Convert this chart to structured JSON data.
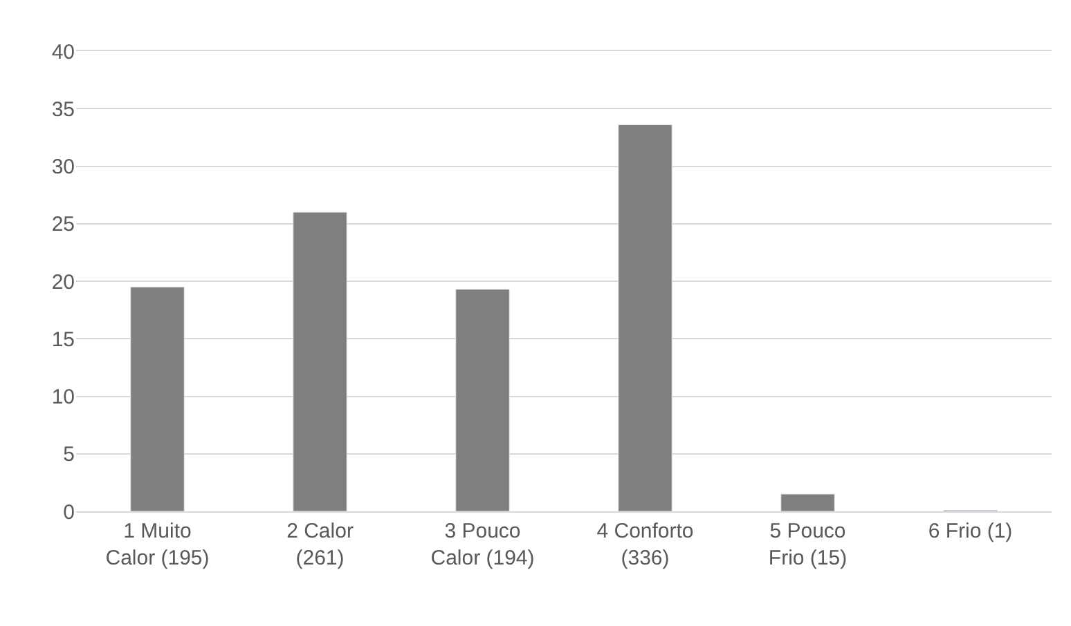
{
  "chart_data": {
    "type": "bar",
    "categories": [
      "1 Muito Calor (195)",
      "2 Calor (261)",
      "3 Pouco Calor (194)",
      "4 Conforto (336)",
      "5 Pouco Frio (15)",
      "6 Frio (1)"
    ],
    "values": [
      19.5,
      26.0,
      19.3,
      33.6,
      1.5,
      0.1
    ],
    "color": "#7f7f7f",
    "ylim": [
      0,
      40
    ],
    "yticks": [
      0,
      5,
      10,
      15,
      20,
      25,
      30,
      35,
      40
    ],
    "grid": "y"
  }
}
